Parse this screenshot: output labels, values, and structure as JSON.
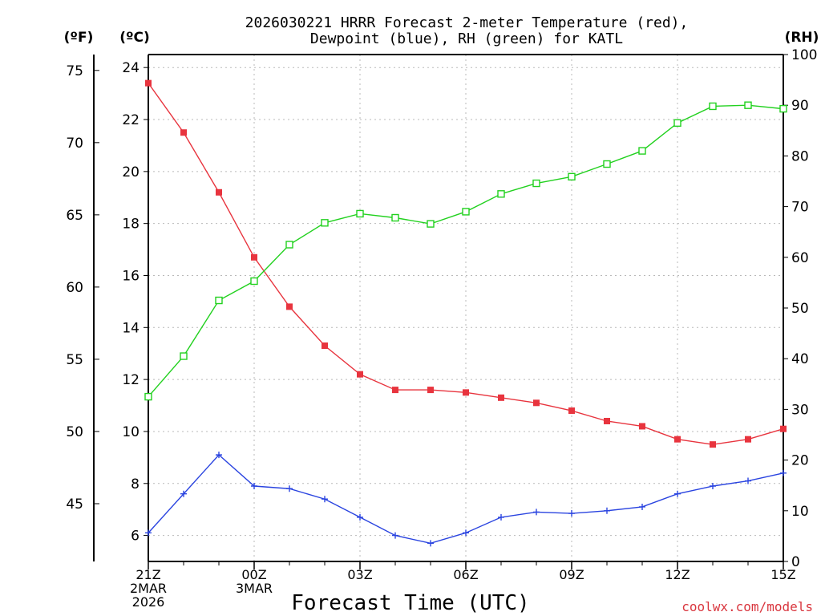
{
  "chart_data": {
    "type": "line",
    "title": "2026030221 HRRR Forecast 2-meter Temperature (red),",
    "title_line2": "Dewpoint (blue), RH (green) for KATL",
    "xlabel": "Forecast Time (UTC)",
    "credit": "coolwx.com/models",
    "unit_f": "(ºF)",
    "unit_c": "(ºC)",
    "unit_rh": "(RH)",
    "x_hours": [
      21,
      22,
      23,
      24,
      25,
      26,
      27,
      28,
      29,
      30,
      31,
      32,
      33,
      34,
      35,
      36,
      37,
      38,
      39
    ],
    "x_ticks": [
      {
        "hour": 21,
        "lines": [
          "21Z",
          "2MAR",
          "2026"
        ]
      },
      {
        "hour": 24,
        "lines": [
          "00Z",
          "3MAR"
        ]
      },
      {
        "hour": 27,
        "lines": [
          "03Z"
        ]
      },
      {
        "hour": 30,
        "lines": [
          "06Z"
        ]
      },
      {
        "hour": 33,
        "lines": [
          "09Z"
        ]
      },
      {
        "hour": 36,
        "lines": [
          "12Z"
        ]
      },
      {
        "hour": 39,
        "lines": [
          "15Z"
        ]
      }
    ],
    "celsius_axis": {
      "ylim": [
        5,
        24.5
      ],
      "ticks": [
        "6",
        "8",
        "10",
        "12",
        "14",
        "16",
        "18",
        "20",
        "22",
        "24"
      ]
    },
    "fahrenheit_axis": {
      "ticks": [
        "45",
        "50",
        "55",
        "60",
        "65",
        "70",
        "75"
      ]
    },
    "rh_axis": {
      "ylim": [
        0,
        100
      ],
      "ticks": [
        "0",
        "10",
        "20",
        "30",
        "40",
        "50",
        "60",
        "70",
        "80",
        "90",
        "100"
      ]
    },
    "series": [
      {
        "name": "2-meter Temperature",
        "axis": "C",
        "color": "#e8343e",
        "marker": "filled-square",
        "values": [
          23.4,
          21.5,
          19.2,
          16.7,
          14.8,
          13.3,
          12.2,
          11.6,
          11.6,
          11.5,
          11.3,
          11.1,
          10.8,
          10.4,
          10.2,
          9.7,
          9.5,
          9.7,
          10.1
        ]
      },
      {
        "name": "Dewpoint",
        "axis": "C",
        "color": "#2a44e0",
        "marker": "plus",
        "values": [
          6.1,
          7.6,
          9.1,
          7.9,
          7.8,
          7.4,
          6.7,
          6.0,
          5.7,
          6.1,
          6.7,
          6.9,
          6.85,
          6.95,
          7.1,
          7.6,
          7.9,
          8.1,
          8.4
        ]
      },
      {
        "name": "Relative Humidity",
        "axis": "RH",
        "color": "#22d11f",
        "marker": "open-square",
        "values": [
          32.5,
          40.5,
          51.5,
          55.3,
          62.5,
          66.8,
          68.6,
          67.8,
          66.6,
          69.0,
          72.5,
          74.6,
          75.9,
          78.4,
          81.0,
          86.5,
          89.8,
          90.0,
          89.3
        ]
      }
    ]
  }
}
